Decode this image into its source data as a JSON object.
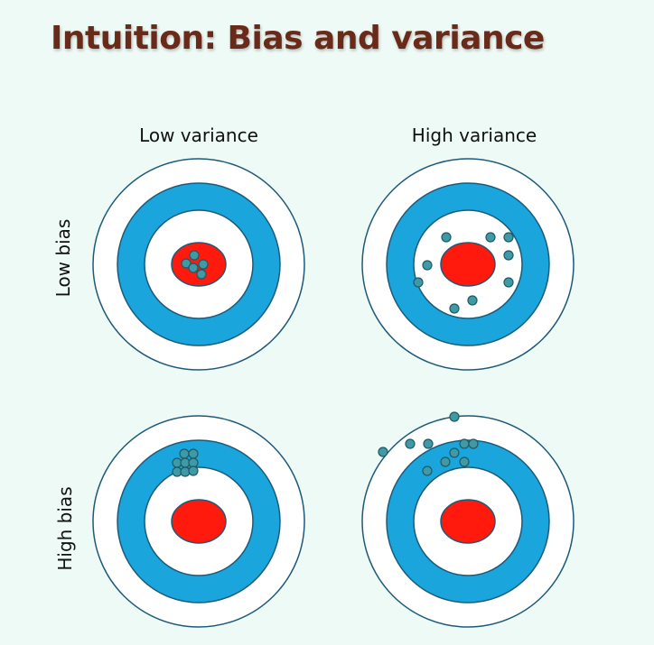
{
  "title": "Intuition: Bias and variance",
  "columns": [
    "Low variance",
    "High variance"
  ],
  "rows": [
    "Low bias",
    "High bias"
  ],
  "colors": {
    "title": "#6a2a1a",
    "ring_outer": "#ffffff",
    "ring_blue": "#1aa6dc",
    "bullseye": "#ff1a0d",
    "ring_stroke": "#1d5a78",
    "dot_fill": "#3f9aa6",
    "dot_stroke": "#1d5a66"
  },
  "icons": [
    "target-icon"
  ],
  "targets": [
    {
      "name": "target-low-bias-low-variance",
      "row": "Low bias",
      "column": "Low variance"
    },
    {
      "name": "target-low-bias-high-variance",
      "row": "Low bias",
      "column": "High variance"
    },
    {
      "name": "target-high-bias-low-variance",
      "row": "High bias",
      "column": "Low variance"
    },
    {
      "name": "target-high-bias-high-variance",
      "row": "High bias",
      "column": "High variance"
    }
  ]
}
